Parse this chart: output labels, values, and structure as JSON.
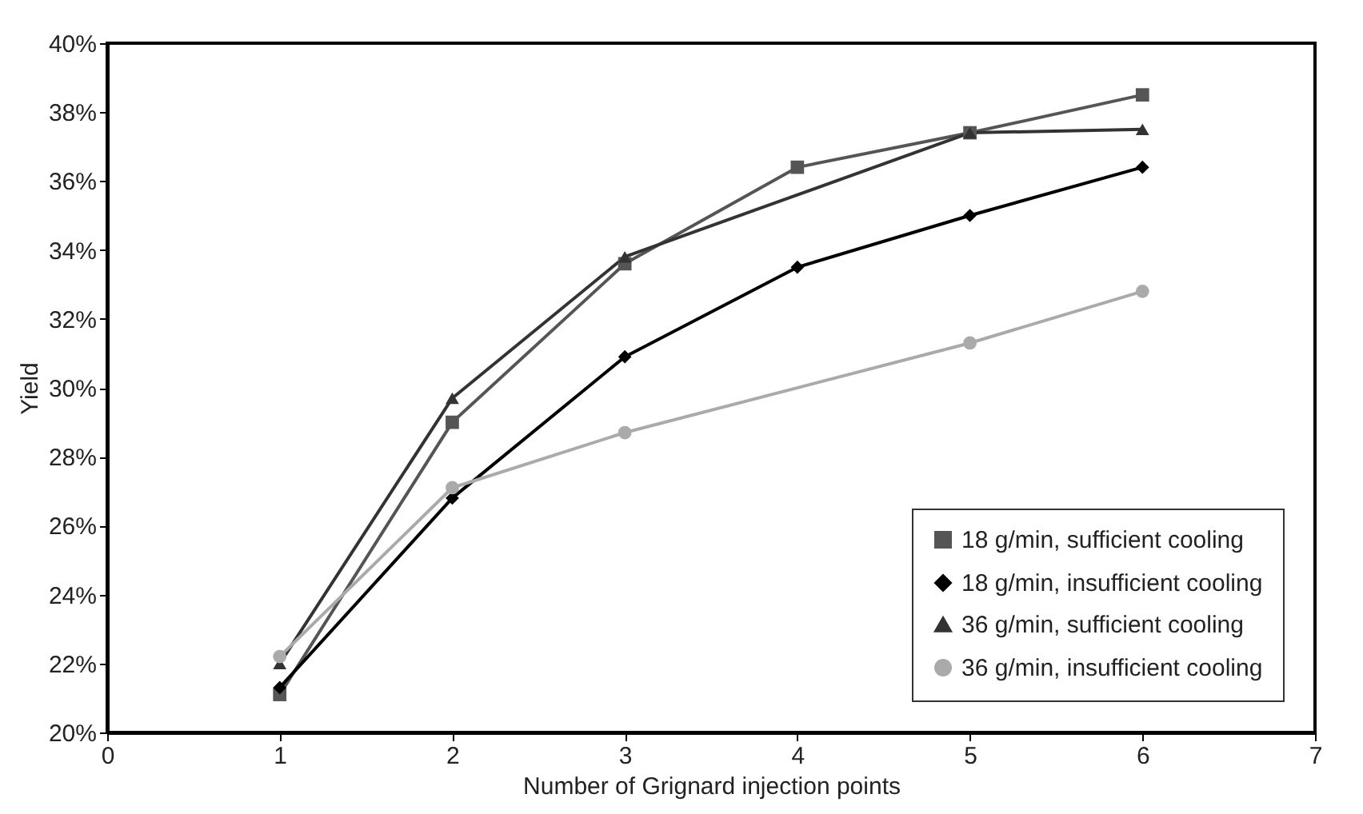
{
  "chart_data": {
    "type": "line",
    "xlabel": "Number of Grignard injection points",
    "ylabel": "Yield",
    "xlim": [
      0,
      7
    ],
    "xticks": [
      0,
      1,
      2,
      3,
      4,
      5,
      6,
      7
    ],
    "ylim": [
      20,
      40
    ],
    "yticks": [
      {
        "value": 20,
        "label": "20%"
      },
      {
        "value": 22,
        "label": "22%"
      },
      {
        "value": 24,
        "label": "24%"
      },
      {
        "value": 26,
        "label": "26%"
      },
      {
        "value": 28,
        "label": "28%"
      },
      {
        "value": 30,
        "label": "30%"
      },
      {
        "value": 32,
        "label": "32%"
      },
      {
        "value": 34,
        "label": "34%"
      },
      {
        "value": 36,
        "label": "36%"
      },
      {
        "value": 38,
        "label": "38%"
      },
      {
        "value": 40,
        "label": "40%"
      }
    ],
    "grid": false,
    "legend": "bottom right",
    "line_style": "solid",
    "series": [
      {
        "name": "18 g/min, sufficient cooling",
        "color": "#555555",
        "marker": "square",
        "x": [
          1,
          2,
          3,
          4,
          5,
          6
        ],
        "values": [
          21.1,
          29.0,
          33.6,
          36.4,
          37.4,
          38.5
        ]
      },
      {
        "name": "18 g/min, insufficient cooling",
        "color": "#000000",
        "marker": "diamond",
        "x": [
          1,
          2,
          3,
          4,
          5,
          6
        ],
        "values": [
          21.3,
          26.8,
          30.9,
          33.5,
          35.0,
          36.4
        ]
      },
      {
        "name": "36 g/min, sufficient cooling",
        "color": "#333333",
        "marker": "triangle",
        "x": [
          1,
          2,
          3,
          5,
          6
        ],
        "values": [
          22.0,
          29.7,
          33.8,
          37.4,
          37.5
        ]
      },
      {
        "name": "36 g/min, insufficient cooling",
        "color": "#aaaaaa",
        "marker": "circle",
        "x": [
          1,
          2,
          3,
          5,
          6
        ],
        "values": [
          22.2,
          27.1,
          28.7,
          31.3,
          32.8
        ]
      }
    ]
  }
}
